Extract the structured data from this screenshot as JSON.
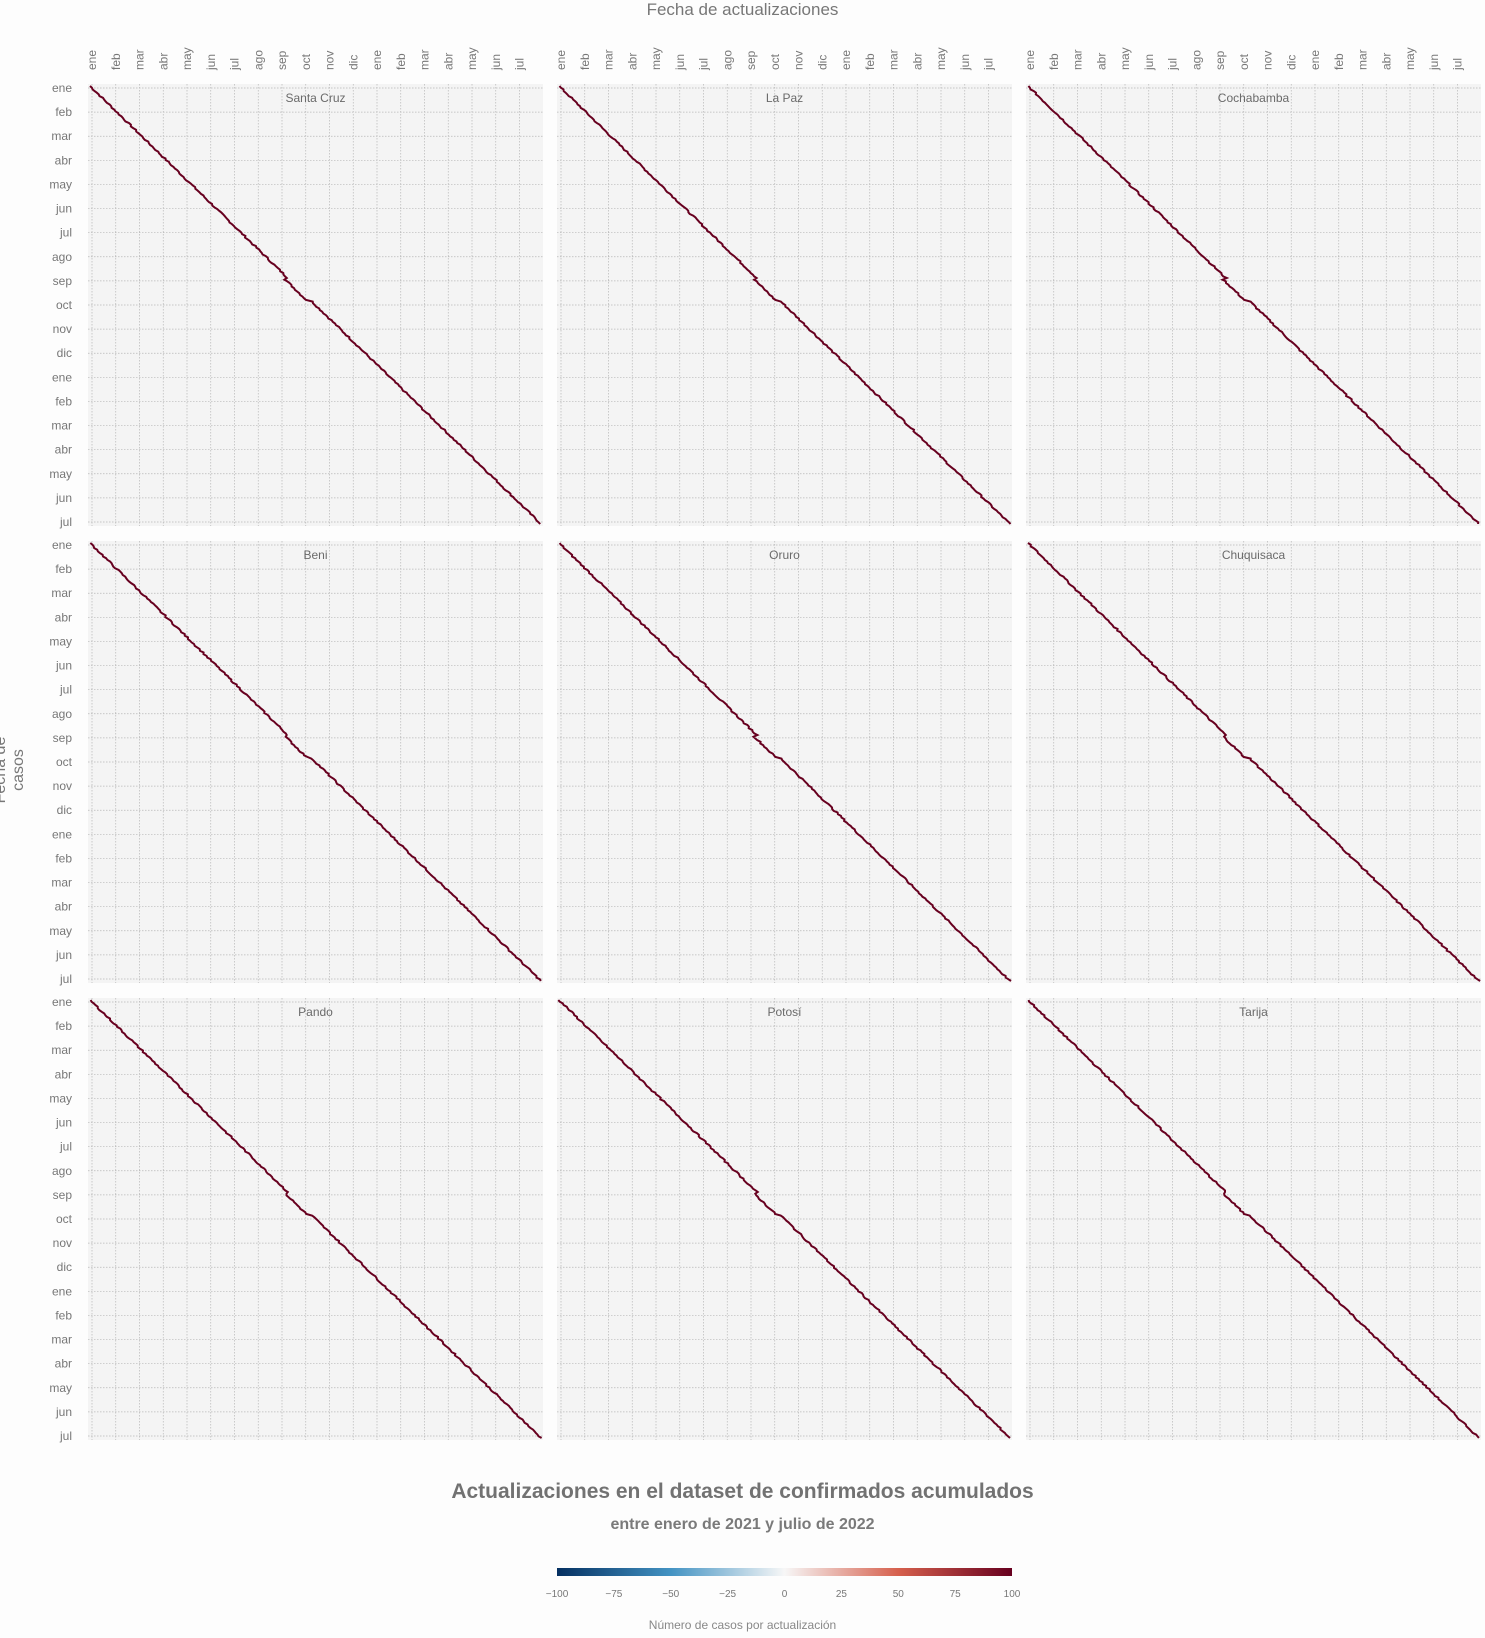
{
  "header": {
    "x_axis_title": "Fecha de actualizaciones",
    "y_axis_title": "Fecha de casos"
  },
  "footer": {
    "title": "Actualizaciones en el dataset de confirmados acumulados",
    "subtitle": "entre enero de 2021 y julio de 2022",
    "legend_title": "Número de casos por actualización"
  },
  "colors": {
    "background": "#fdfdfd",
    "panel_background": "#f4f4f4",
    "grid": "#b7b7b7",
    "diagonal": "#67001f",
    "legend_gradient": [
      "#053061",
      "#4393c3",
      "#f7f7f7",
      "#d6604d",
      "#67001f"
    ]
  },
  "chart_data": {
    "type": "heatmap",
    "facet_layout": "3x3",
    "x_tick_labels": [
      "ene",
      "feb",
      "mar",
      "abr",
      "may",
      "jun",
      "jul",
      "ago",
      "sep",
      "oct",
      "nov",
      "dic",
      "ene",
      "feb",
      "mar",
      "abr",
      "may",
      "jun",
      "jul"
    ],
    "y_tick_labels": [
      "ene",
      "feb",
      "mar",
      "abr",
      "may",
      "jun",
      "jul",
      "ago",
      "sep",
      "oct",
      "nov",
      "dic",
      "ene",
      "feb",
      "mar",
      "abr",
      "may",
      "jun",
      "jul"
    ],
    "x_range": [
      "2021-01-01",
      "2022-07-31"
    ],
    "y_range": [
      "2021-01-01",
      "2022-07-31"
    ],
    "grid": true,
    "facets": [
      "Santa Cruz",
      "La Paz",
      "Cochabamba",
      "Beni",
      "Oruro",
      "Chuquisaca",
      "Pando",
      "Potosí",
      "Tarija"
    ],
    "pattern": "Nearly all updates fall on the diagonal (case date ≈ update date) with values near the maximum of the color scale; a visible step around late September 2021.",
    "color_scale": {
      "name": "RdBu (reversed)",
      "domain": [
        -100,
        100
      ],
      "ticks": [
        -100,
        -75,
        -50,
        -25,
        0,
        25,
        50,
        75,
        100
      ],
      "tick_labels": [
        "−100",
        "−75",
        "−50",
        "−25",
        "0",
        "25",
        "50",
        "75",
        "100"
      ]
    }
  }
}
